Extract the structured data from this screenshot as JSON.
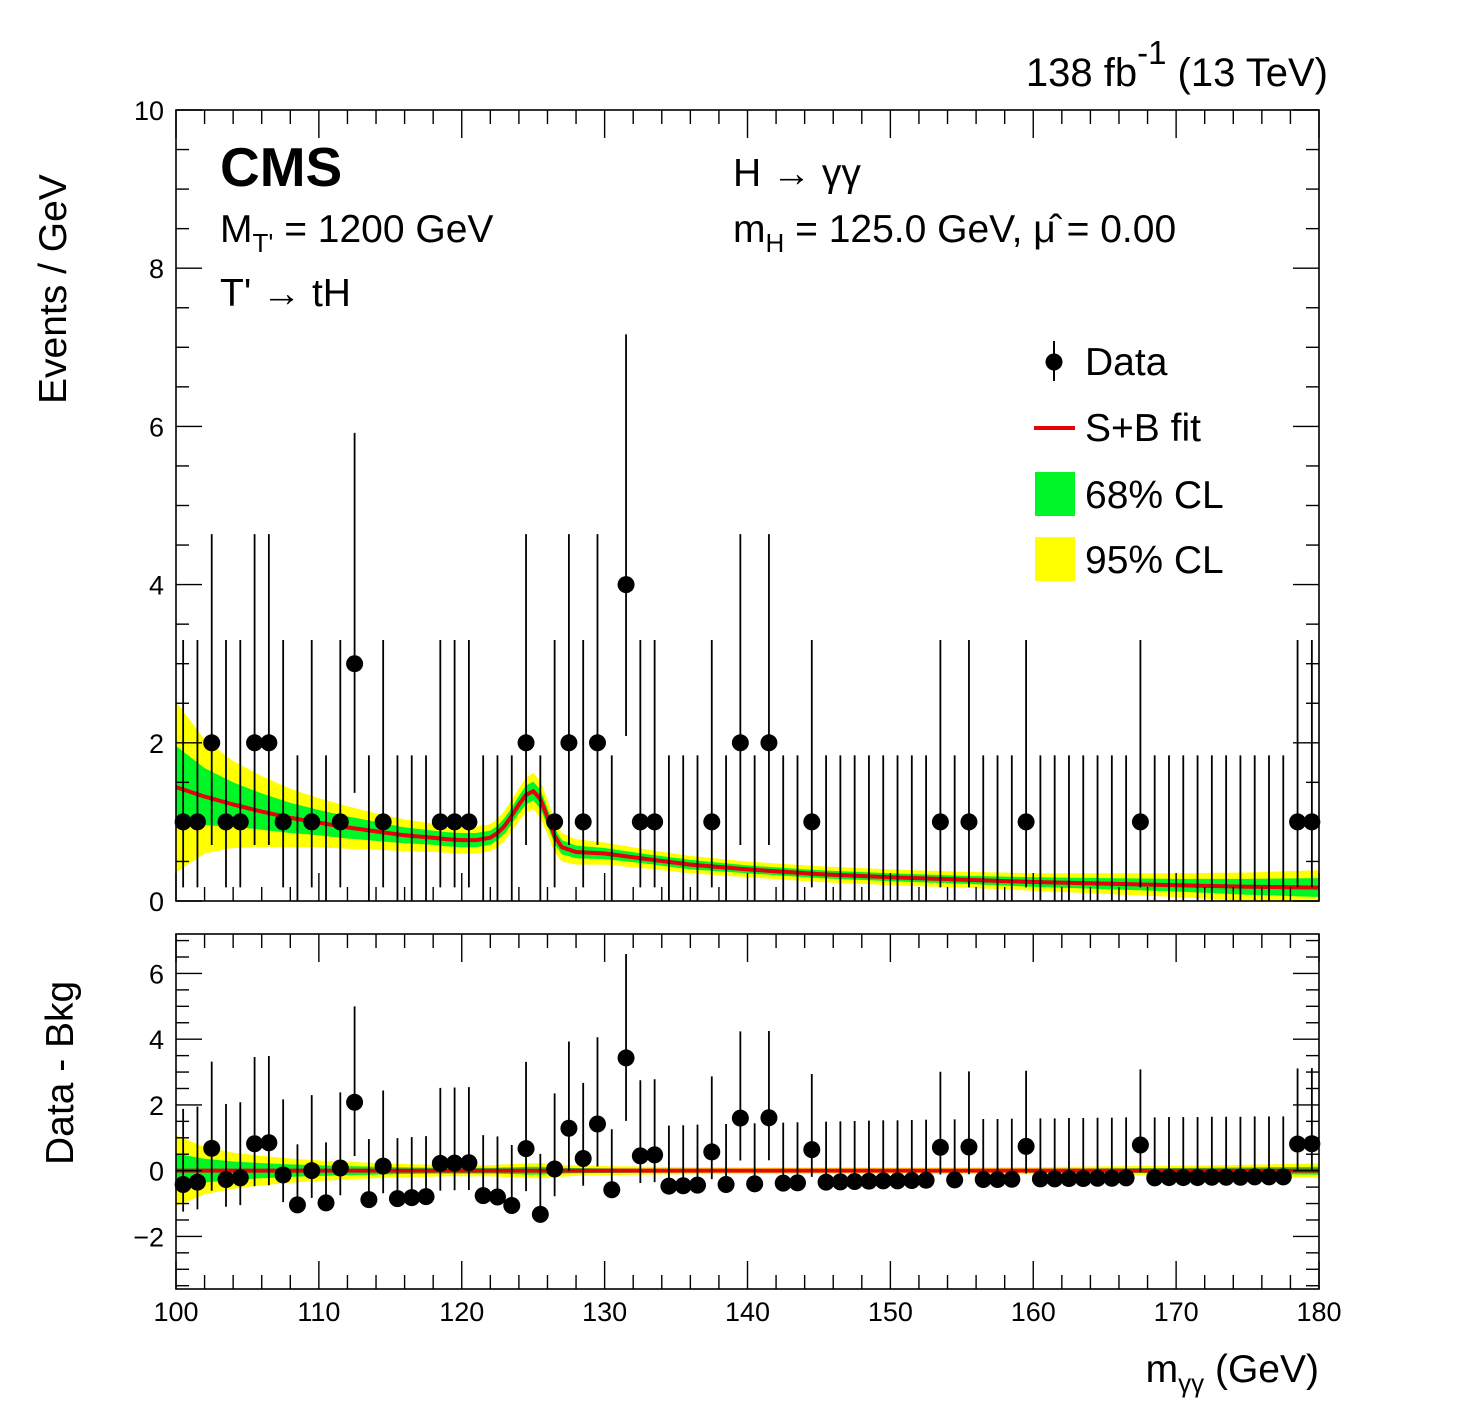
{
  "lumi_label": "138 fb",
  "lumi_exponent": "-1",
  "energy_label": " (13 TeV)",
  "experiment": "CMS",
  "annotations": {
    "mass_label": "M",
    "mass_sub": "T'",
    "mass_value": " = 1200 GeV",
    "decay": "T' → tH",
    "channel": "H → γγ",
    "mh_label": "m",
    "mh_sub": "H",
    "mh_value": " = 125.0 GeV, ",
    "mu_symbol": "μ̂",
    "mu_value": " = 0.00"
  },
  "legend": {
    "data": "Data",
    "fit": "S+B fit",
    "cl68": "68% CL",
    "cl95": "95% CL"
  },
  "colors": {
    "fit": "#e8000b",
    "cl68": "#00f626",
    "cl95": "#ffff00",
    "data": "#000000"
  },
  "chart_data": [
    {
      "type": "scatter",
      "panel": "main",
      "ylabel": "Events / GeV",
      "xlim": [
        100,
        180
      ],
      "ylim": [
        0,
        10
      ],
      "yticks": [
        0,
        2,
        4,
        6,
        8,
        10
      ],
      "x": [
        100.5,
        101.5,
        102.5,
        103.5,
        104.5,
        105.5,
        106.5,
        107.5,
        108.5,
        109.5,
        110.5,
        111.5,
        112.5,
        113.5,
        114.5,
        115.5,
        116.5,
        117.5,
        118.5,
        119.5,
        120.5,
        121.5,
        122.5,
        123.5,
        124.5,
        125.5,
        126.5,
        127.5,
        128.5,
        129.5,
        130.5,
        131.5,
        132.5,
        133.5,
        134.5,
        135.5,
        136.5,
        137.5,
        138.5,
        139.5,
        140.5,
        141.5,
        142.5,
        143.5,
        144.5,
        145.5,
        146.5,
        147.5,
        148.5,
        149.5,
        150.5,
        151.5,
        152.5,
        153.5,
        154.5,
        155.5,
        156.5,
        157.5,
        158.5,
        159.5,
        160.5,
        161.5,
        162.5,
        163.5,
        164.5,
        165.5,
        166.5,
        167.5,
        168.5,
        169.5,
        170.5,
        171.5,
        172.5,
        173.5,
        174.5,
        175.5,
        176.5,
        177.5,
        178.5,
        179.5
      ],
      "y": [
        1,
        1,
        2,
        1,
        1,
        2,
        2,
        1,
        0,
        1,
        0,
        1,
        3,
        0,
        1,
        0,
        0,
        0,
        1,
        1,
        1,
        0,
        0,
        0,
        2,
        0,
        1,
        2,
        1,
        2,
        0,
        4,
        1,
        1,
        0,
        0,
        0,
        1,
        0,
        2,
        0,
        2,
        0,
        0,
        1,
        0,
        0,
        0,
        0,
        0,
        0,
        0,
        0,
        1,
        0,
        1,
        0,
        0,
        0,
        1,
        0,
        0,
        0,
        0,
        0,
        0,
        0,
        1,
        0,
        0,
        0,
        0,
        0,
        0,
        0,
        0,
        0,
        0,
        1,
        1
      ],
      "fit_x": [
        100,
        102,
        104,
        106,
        108,
        110,
        112,
        114,
        116,
        118,
        119,
        120,
        121,
        122,
        122.5,
        123,
        123.5,
        124,
        124.5,
        125,
        125.5,
        126,
        126.5,
        127,
        128,
        130,
        133,
        136,
        140,
        145,
        150,
        155,
        160,
        165,
        170,
        175,
        180
      ],
      "fit_y": [
        1.44,
        1.32,
        1.22,
        1.13,
        1.05,
        0.99,
        0.93,
        0.88,
        0.83,
        0.8,
        0.78,
        0.77,
        0.77,
        0.8,
        0.86,
        0.95,
        1.08,
        1.22,
        1.34,
        1.39,
        1.29,
        1.06,
        0.82,
        0.68,
        0.62,
        0.6,
        0.53,
        0.46,
        0.4,
        0.34,
        0.3,
        0.27,
        0.24,
        0.22,
        0.2,
        0.18,
        0.17
      ],
      "cl68_hw": [
        0.52,
        0.36,
        0.28,
        0.23,
        0.19,
        0.16,
        0.14,
        0.12,
        0.1,
        0.09,
        0.09,
        0.09,
        0.09,
        0.09,
        0.09,
        0.1,
        0.1,
        0.11,
        0.12,
        0.12,
        0.12,
        0.11,
        0.1,
        0.09,
        0.08,
        0.07,
        0.06,
        0.06,
        0.05,
        0.05,
        0.05,
        0.05,
        0.06,
        0.07,
        0.08,
        0.1,
        0.12
      ],
      "cl95_hw": [
        1.08,
        0.72,
        0.55,
        0.45,
        0.37,
        0.31,
        0.27,
        0.23,
        0.2,
        0.18,
        0.17,
        0.17,
        0.17,
        0.17,
        0.18,
        0.19,
        0.2,
        0.21,
        0.22,
        0.23,
        0.23,
        0.22,
        0.2,
        0.18,
        0.16,
        0.14,
        0.12,
        0.11,
        0.1,
        0.1,
        0.1,
        0.1,
        0.11,
        0.13,
        0.15,
        0.18,
        0.22
      ]
    },
    {
      "type": "scatter",
      "panel": "ratio",
      "xlabel": "m",
      "xlabel_sub": "γγ",
      "xlabel_unit": " (GeV)",
      "ylabel": "Data - Bkg",
      "xlim": [
        100,
        180
      ],
      "ylim": [
        -3.6,
        7.2
      ],
      "yticks": [
        -2,
        0,
        2,
        4,
        6
      ],
      "ytick_labels": [
        "−2",
        "0",
        "2",
        "4",
        "6"
      ],
      "xticks": [
        100,
        110,
        120,
        130,
        140,
        150,
        160,
        170,
        180
      ],
      "y": [
        -0.42,
        -0.35,
        0.68,
        -0.27,
        -0.22,
        0.82,
        0.85,
        -0.13,
        -1.04,
        0.0,
        -0.98,
        0.08,
        2.08,
        -0.88,
        0.14,
        -0.85,
        -0.82,
        -0.79,
        0.22,
        0.23,
        0.24,
        -0.76,
        -0.8,
        -1.06,
        0.67,
        -1.33,
        0.05,
        1.29,
        0.37,
        1.42,
        -0.58,
        3.43,
        0.45,
        0.48,
        -0.47,
        -0.46,
        -0.44,
        0.57,
        -0.42,
        1.6,
        -0.4,
        1.61,
        -0.38,
        -0.37,
        0.64,
        -0.35,
        -0.34,
        -0.33,
        -0.32,
        -0.31,
        -0.31,
        -0.3,
        -0.29,
        0.71,
        -0.28,
        0.72,
        -0.27,
        -0.27,
        -0.26,
        0.74,
        -0.25,
        -0.25,
        -0.24,
        -0.24,
        -0.23,
        -0.23,
        -0.22,
        0.78,
        -0.22,
        -0.21,
        -0.21,
        -0.21,
        -0.2,
        -0.2,
        -0.2,
        -0.19,
        -0.19,
        -0.19,
        0.81,
        0.82
      ]
    }
  ]
}
